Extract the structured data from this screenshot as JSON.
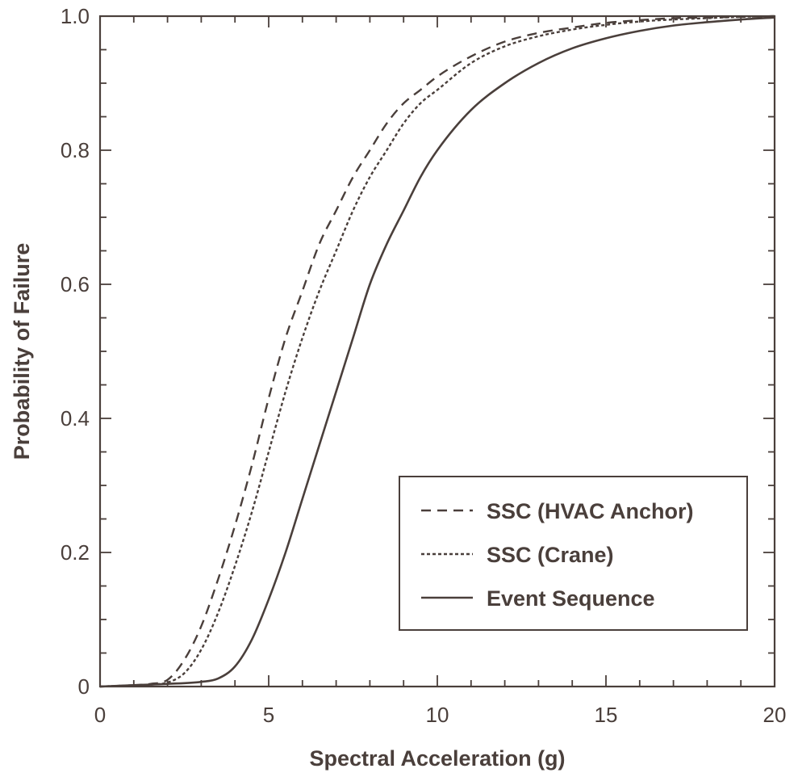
{
  "chart_data": {
    "type": "line",
    "title": "",
    "xlabel": "Spectral Acceleration (g)",
    "ylabel": "Probability of Failure",
    "xlim": [
      0,
      20
    ],
    "ylim": [
      0,
      1
    ],
    "x_ticks": [
      0,
      5,
      10,
      15,
      20
    ],
    "y_ticks": [
      0,
      0.2,
      0.4,
      0.6,
      0.8,
      1.0
    ],
    "x_tick_labels": [
      "0",
      "5",
      "10",
      "15",
      "20"
    ],
    "y_tick_labels": [
      "0",
      "0.2",
      "0.4",
      "0.6",
      "0.8",
      "1.0"
    ],
    "grid": false,
    "legend_position": "lower-right",
    "colors": {
      "line": "#4a3f3b",
      "axes": "#4a3f3b"
    },
    "series": [
      {
        "name": "SSC (HVAC Anchor)",
        "style": "dashed",
        "x": [
          0,
          1,
          1.5,
          2,
          2.5,
          3,
          3.5,
          4,
          4.5,
          5,
          5.5,
          6,
          6.5,
          7,
          7.5,
          8,
          8.5,
          9,
          9.5,
          10,
          11,
          12,
          13,
          14,
          15,
          16,
          17,
          18,
          19,
          20
        ],
        "y": [
          0,
          0.002,
          0.004,
          0.01,
          0.04,
          0.09,
          0.16,
          0.24,
          0.33,
          0.43,
          0.52,
          0.59,
          0.66,
          0.71,
          0.76,
          0.8,
          0.84,
          0.87,
          0.89,
          0.91,
          0.94,
          0.962,
          0.975,
          0.983,
          0.99,
          0.994,
          0.997,
          0.998,
          0.999,
          1.0
        ]
      },
      {
        "name": "SSC (Crane)",
        "style": "dotted",
        "x": [
          0,
          1,
          1.5,
          2,
          2.5,
          3,
          3.5,
          4,
          4.5,
          5,
          5.5,
          6,
          6.5,
          7,
          7.5,
          8,
          8.5,
          9,
          9.5,
          10,
          11,
          12,
          13,
          14,
          15,
          16,
          17,
          18,
          19,
          20
        ],
        "y": [
          0,
          0.002,
          0.003,
          0.006,
          0.02,
          0.055,
          0.11,
          0.18,
          0.26,
          0.35,
          0.44,
          0.52,
          0.59,
          0.65,
          0.71,
          0.76,
          0.8,
          0.84,
          0.87,
          0.89,
          0.93,
          0.955,
          0.97,
          0.98,
          0.987,
          0.992,
          0.995,
          0.997,
          0.999,
          1.0
        ]
      },
      {
        "name": "Event Sequence",
        "style": "solid",
        "x": [
          0,
          1,
          2,
          3,
          3.5,
          4,
          4.5,
          5,
          5.5,
          6,
          6.5,
          7,
          7.5,
          8,
          8.5,
          9,
          9.5,
          10,
          11,
          12,
          13,
          14,
          15,
          16,
          17,
          18,
          19,
          20
        ],
        "y": [
          0,
          0.002,
          0.004,
          0.007,
          0.012,
          0.03,
          0.07,
          0.13,
          0.2,
          0.28,
          0.36,
          0.44,
          0.52,
          0.6,
          0.66,
          0.71,
          0.76,
          0.8,
          0.86,
          0.9,
          0.93,
          0.952,
          0.967,
          0.978,
          0.986,
          0.991,
          0.995,
          0.998
        ]
      }
    ]
  }
}
